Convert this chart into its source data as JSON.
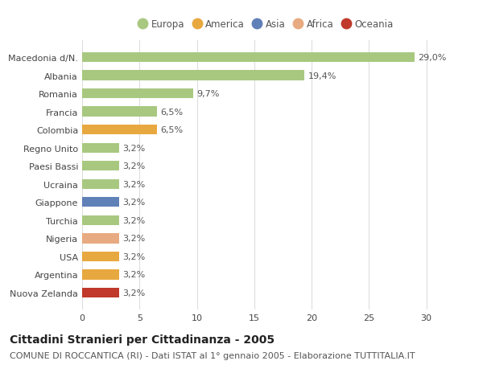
{
  "categories": [
    "Nuova Zelanda",
    "Argentina",
    "USA",
    "Nigeria",
    "Turchia",
    "Giappone",
    "Ucraina",
    "Paesi Bassi",
    "Regno Unito",
    "Colombia",
    "Francia",
    "Romania",
    "Albania",
    "Macedonia d/N."
  ],
  "values": [
    3.2,
    3.2,
    3.2,
    3.2,
    3.2,
    3.2,
    3.2,
    3.2,
    3.2,
    6.5,
    6.5,
    9.7,
    19.4,
    29.0
  ],
  "bar_colors": [
    "#c0392b",
    "#e8a840",
    "#e8a840",
    "#e8aa80",
    "#a8c880",
    "#6080b8",
    "#a8c880",
    "#a8c880",
    "#a8c880",
    "#e8a840",
    "#a8c880",
    "#a8c880",
    "#a8c880",
    "#a8c880"
  ],
  "labels": [
    "3,2%",
    "3,2%",
    "3,2%",
    "3,2%",
    "3,2%",
    "3,2%",
    "3,2%",
    "3,2%",
    "3,2%",
    "6,5%",
    "6,5%",
    "9,7%",
    "19,4%",
    "29,0%"
  ],
  "legend_items": [
    {
      "label": "Europa",
      "color": "#a8c880"
    },
    {
      "label": "America",
      "color": "#e8a840"
    },
    {
      "label": "Asia",
      "color": "#6080b8"
    },
    {
      "label": "Africa",
      "color": "#e8aa80"
    },
    {
      "label": "Oceania",
      "color": "#c0392b"
    }
  ],
  "xlim": [
    0,
    32
  ],
  "xticks": [
    0,
    5,
    10,
    15,
    20,
    25,
    30
  ],
  "title": "Cittadini Stranieri per Cittadinanza - 2005",
  "subtitle": "COMUNE DI ROCCANTICA (RI) - Dati ISTAT al 1° gennaio 2005 - Elaborazione TUTTITALIA.IT",
  "background_color": "#ffffff",
  "grid_color": "#dddddd",
  "bar_height": 0.55,
  "title_fontsize": 10,
  "subtitle_fontsize": 8,
  "label_fontsize": 8,
  "tick_fontsize": 8
}
